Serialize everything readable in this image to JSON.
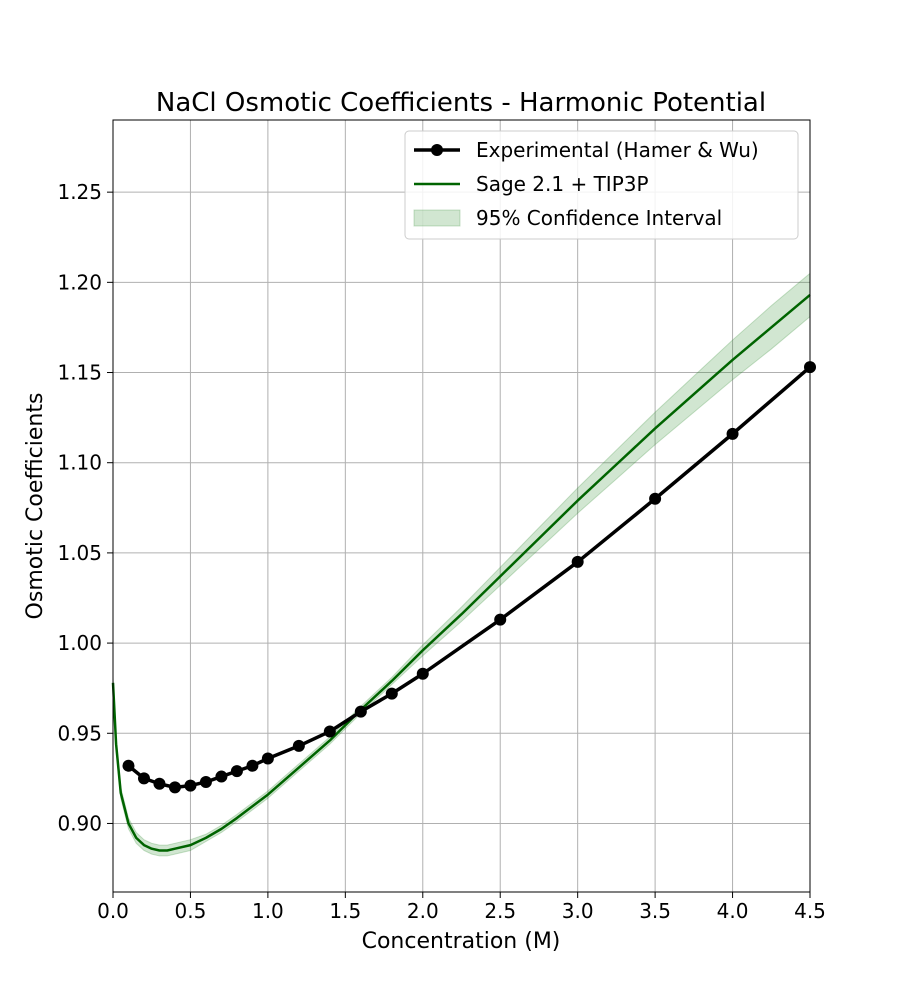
{
  "chart_data": {
    "type": "line",
    "title": "NaCl Osmotic Coefficients - Harmonic Potential",
    "xlabel": "Concentration (M)",
    "ylabel": "Osmotic Coefficients",
    "xlim": [
      0.0,
      4.5
    ],
    "ylim": [
      0.862,
      1.29
    ],
    "xticks": [
      0.0,
      0.5,
      1.0,
      1.5,
      2.0,
      2.5,
      3.0,
      3.5,
      4.0,
      4.5
    ],
    "xtick_labels": [
      "0.0",
      "0.5",
      "1.0",
      "1.5",
      "2.0",
      "2.5",
      "3.0",
      "3.5",
      "4.0",
      "4.5"
    ],
    "yticks": [
      0.9,
      0.95,
      1.0,
      1.05,
      1.1,
      1.15,
      1.2,
      1.25
    ],
    "ytick_labels": [
      "0.90",
      "0.95",
      "1.00",
      "1.05",
      "1.10",
      "1.15",
      "1.20",
      "1.25"
    ],
    "grid": true,
    "legend_position": "top-right",
    "series": [
      {
        "name": "Experimental (Hamer & Wu)",
        "color": "#000000",
        "style": "line-with-markers",
        "x": [
          0.1,
          0.2,
          0.3,
          0.4,
          0.5,
          0.6,
          0.7,
          0.8,
          0.9,
          1.0,
          1.2,
          1.4,
          1.6,
          1.8,
          2.0,
          2.5,
          3.0,
          3.5,
          4.0,
          4.5
        ],
        "y": [
          0.932,
          0.925,
          0.922,
          0.92,
          0.921,
          0.923,
          0.926,
          0.929,
          0.932,
          0.936,
          0.943,
          0.951,
          0.962,
          0.972,
          0.983,
          1.013,
          1.045,
          1.08,
          1.116,
          1.153
        ]
      },
      {
        "name": "Sage 2.1 + TIP3P",
        "color": "#006400",
        "style": "line",
        "x": [
          0.0,
          0.02,
          0.05,
          0.1,
          0.15,
          0.2,
          0.25,
          0.3,
          0.35,
          0.4,
          0.5,
          0.6,
          0.7,
          0.8,
          1.0,
          1.2,
          1.4,
          1.6,
          1.8,
          2.0,
          2.25,
          2.5,
          2.75,
          3.0,
          3.25,
          3.5,
          3.75,
          4.0,
          4.25,
          4.5
        ],
        "y": [
          0.978,
          0.944,
          0.917,
          0.9,
          0.892,
          0.888,
          0.886,
          0.885,
          0.885,
          0.886,
          0.888,
          0.892,
          0.897,
          0.903,
          0.916,
          0.931,
          0.946,
          0.963,
          0.979,
          0.996,
          1.016,
          1.037,
          1.058,
          1.079,
          1.099,
          1.119,
          1.138,
          1.157,
          1.175,
          1.193
        ]
      }
    ],
    "confidence_band": {
      "name": "95% Confidence Interval",
      "color": "#2e8b2e",
      "x": [
        0.0,
        0.02,
        0.05,
        0.1,
        0.15,
        0.2,
        0.25,
        0.3,
        0.35,
        0.4,
        0.5,
        0.6,
        0.7,
        0.8,
        1.0,
        1.2,
        1.4,
        1.6,
        1.8,
        2.0,
        2.25,
        2.5,
        2.75,
        3.0,
        3.25,
        3.5,
        3.75,
        4.0,
        4.25,
        4.5
      ],
      "lower": [
        0.975,
        0.941,
        0.914,
        0.897,
        0.889,
        0.885,
        0.883,
        0.882,
        0.882,
        0.883,
        0.885,
        0.89,
        0.895,
        0.901,
        0.914,
        0.929,
        0.944,
        0.961,
        0.977,
        0.993,
        1.012,
        1.032,
        1.052,
        1.072,
        1.091,
        1.11,
        1.128,
        1.146,
        1.163,
        1.181
      ],
      "upper": [
        0.981,
        0.947,
        0.92,
        0.903,
        0.895,
        0.891,
        0.889,
        0.888,
        0.888,
        0.889,
        0.891,
        0.894,
        0.899,
        0.905,
        0.918,
        0.933,
        0.948,
        0.965,
        0.981,
        0.999,
        1.02,
        1.042,
        1.064,
        1.086,
        1.107,
        1.128,
        1.148,
        1.168,
        1.187,
        1.205
      ]
    }
  }
}
